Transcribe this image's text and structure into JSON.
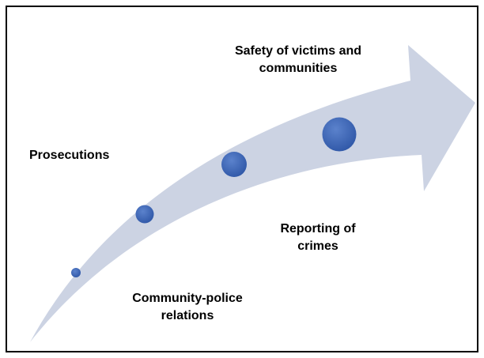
{
  "labels": {
    "safety_line1": "Safety of victims and",
    "safety_line2": "communities",
    "prosecutions": "Prosecutions",
    "reporting_line1": "Reporting of",
    "reporting_line2": "crimes",
    "community_line1": "Community-police",
    "community_line2": "relations"
  },
  "colors": {
    "arrow_fill": "#ccd3e3",
    "dot_fill": "#2f57a7",
    "dot_highlight": "#5b82cc",
    "border": "#000000",
    "text": "#000000"
  },
  "dots": [
    {
      "name": "community-police-relations",
      "size_rank": 1
    },
    {
      "name": "prosecutions",
      "size_rank": 2
    },
    {
      "name": "reporting-of-crimes",
      "size_rank": 3
    },
    {
      "name": "safety-of-victims-and-communities",
      "size_rank": 4
    }
  ]
}
